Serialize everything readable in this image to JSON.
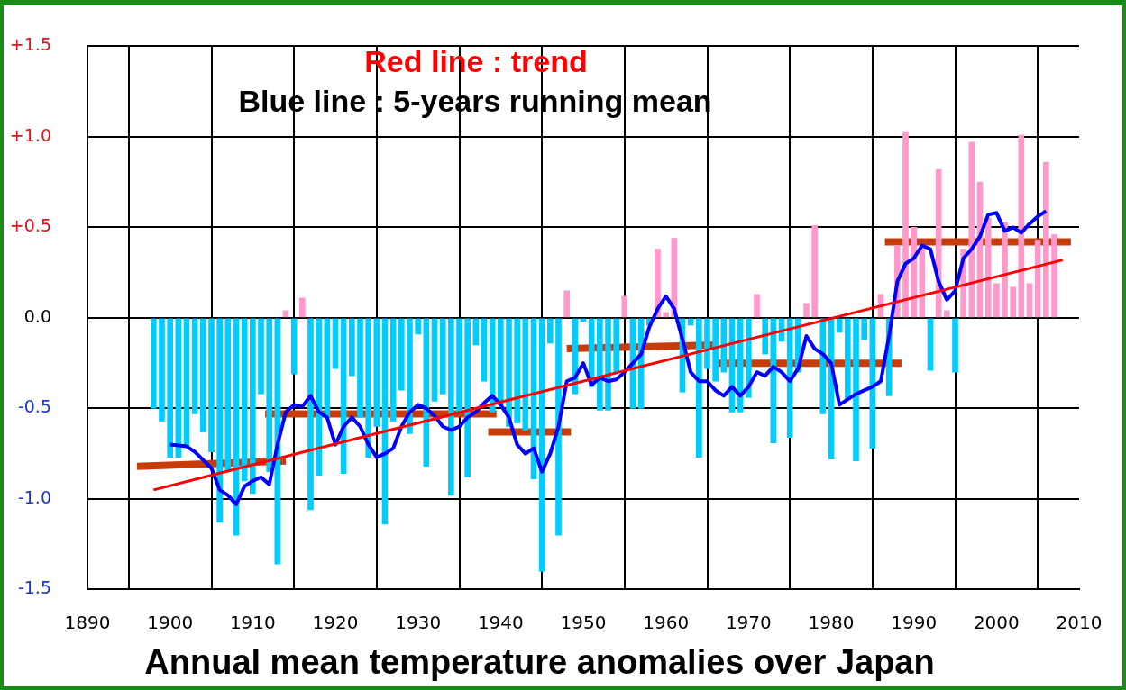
{
  "chart_data": {
    "type": "bar",
    "title": "Annual mean temperature anomalies over Japan",
    "annotations": [
      "Red line : trend",
      "Blue line : 5-years running mean"
    ],
    "xlim": [
      1890,
      2010
    ],
    "xticks": [
      1890,
      1900,
      1910,
      1920,
      1930,
      1940,
      1950,
      1960,
      1970,
      1980,
      1990,
      2000,
      2010
    ],
    "ylim": [
      -1.5,
      1.5
    ],
    "yticks": [
      {
        "value": 1.5,
        "label": "+1.5"
      },
      {
        "value": 1,
        "label": "+1.0"
      },
      {
        "value": 0.5,
        "label": "+0.5"
      },
      {
        "value": 0,
        "label": "0.0"
      },
      {
        "value": -0.5,
        "label": "-0.5"
      },
      {
        "value": -1,
        "label": "-1.0"
      },
      {
        "value": -1.5,
        "label": "-1.5"
      }
    ],
    "grid": true,
    "legend": false,
    "marker": "none",
    "series": [
      {
        "x": [
          1898,
          1899,
          1900,
          1901,
          1902,
          1903,
          1904,
          1905,
          1906,
          1907,
          1908,
          1909,
          1910,
          1911,
          1912,
          1913,
          1914,
          1915,
          1916,
          1917,
          1918,
          1919,
          1920,
          1921,
          1922,
          1923,
          1924,
          1925,
          1926,
          1927,
          1928,
          1929,
          1930,
          1931,
          1932,
          1933,
          1934,
          1935,
          1936,
          1937,
          1938,
          1939,
          1940,
          1941,
          1942,
          1943,
          1944,
          1945,
          1946,
          1947,
          1948,
          1949,
          1950,
          1951,
          1952,
          1953,
          1954,
          1955,
          1956,
          1957,
          1958,
          1959,
          1960,
          1961,
          1962,
          1963,
          1964,
          1965,
          1966,
          1967,
          1968,
          1969,
          1970,
          1971,
          1972,
          1973,
          1974,
          1975,
          1976,
          1977,
          1978,
          1979,
          1980,
          1981,
          1982,
          1983,
          1984,
          1985,
          1986,
          1987,
          1988,
          1989,
          1990,
          1991,
          1992,
          1993,
          1994,
          1995,
          1996,
          1997,
          1998,
          1999,
          2000,
          2001,
          2002,
          2003,
          2004,
          2005,
          2006,
          2007
        ],
        "values": [
          -0.5,
          -0.57,
          -0.77,
          -0.77,
          -0.71,
          -0.53,
          -0.63,
          -0.74,
          -1.13,
          -0.85,
          -1.2,
          -0.9,
          -0.97,
          -0.42,
          -0.85,
          -1.36,
          0.04,
          -0.31,
          0.11,
          -1.06,
          -0.87,
          -0.55,
          -0.28,
          -0.86,
          -0.32,
          -0.55,
          -0.77,
          -0.6,
          -1.14,
          -0.57,
          -0.4,
          -0.64,
          -0.09,
          -0.82,
          -0.46,
          -0.42,
          -0.98,
          -0.53,
          -0.88,
          -0.15,
          -0.35,
          -0.52,
          -0.48,
          -0.6,
          -0.58,
          -0.62,
          -0.89,
          -1.4,
          -0.14,
          -1.2,
          0.15,
          -0.42,
          -0.02,
          -0.38,
          -0.51,
          -0.51,
          -0.3,
          0.12,
          -0.5,
          -0.5,
          -0.04,
          0.38,
          0.03,
          0.44,
          -0.41,
          -0.04,
          -0.77,
          -0.28,
          -0.35,
          -0.3,
          -0.52,
          -0.52,
          -0.44,
          0.13,
          -0.2,
          -0.69,
          -0.13,
          -0.66,
          -0.3,
          0.08,
          0.51,
          -0.53,
          -0.78,
          -0.08,
          -0.45,
          -0.79,
          -0.12,
          -0.72,
          0.13,
          -0.43,
          0.4,
          1.03,
          0.5,
          0.4,
          -0.29,
          0.82,
          0.04,
          -0.3,
          0.38,
          0.97,
          0.75,
          0.55,
          0.19,
          0.53,
          0.17,
          1.01,
          0.19,
          0.43,
          0.86,
          0.46
        ],
        "colors": [
          "#00ccff",
          "#00ccff",
          "#00ccff",
          "#00ccff",
          "#00ccff",
          "#00ccff",
          "#00ccff",
          "#00ccff",
          "#00ccff",
          "#00ccff",
          "#00ccff",
          "#00ccff",
          "#00ccff",
          "#00ccff",
          "#00ccff",
          "#00ccff",
          "#ff99cc",
          "#00ccff",
          "#ff99cc",
          "#00ccff",
          "#00ccff",
          "#00ccff",
          "#00ccff",
          "#00ccff",
          "#00ccff",
          "#00ccff",
          "#00ccff",
          "#00ccff",
          "#00ccff",
          "#00ccff",
          "#00ccff",
          "#00ccff",
          "#00ccff",
          "#00ccff",
          "#00ccff",
          "#00ccff",
          "#00ccff",
          "#00ccff",
          "#00ccff",
          "#00ccff",
          "#00ccff",
          "#00ccff",
          "#00ccff",
          "#00ccff",
          "#00ccff",
          "#00ccff",
          "#00ccff",
          "#00ccff",
          "#00ccff",
          "#00ccff",
          "#ff99cc",
          "#00ccff",
          "#00ccff",
          "#00ccff",
          "#00ccff",
          "#00ccff",
          "#00ccff",
          "#ff99cc",
          "#00ccff",
          "#00ccff",
          "#00ccff",
          "#ff99cc",
          "#ff99cc",
          "#ff99cc",
          "#00ccff",
          "#00ccff",
          "#00ccff",
          "#00ccff",
          "#00ccff",
          "#00ccff",
          "#00ccff",
          "#00ccff",
          "#00ccff",
          "#ff99cc",
          "#00ccff",
          "#00ccff",
          "#00ccff",
          "#00ccff",
          "#00ccff",
          "#ff99cc",
          "#ff99cc",
          "#00ccff",
          "#00ccff",
          "#00ccff",
          "#00ccff",
          "#00ccff",
          "#00ccff",
          "#00ccff",
          "#ff99cc",
          "#00ccff",
          "#ff99cc",
          "#ff99cc",
          "#ff99cc",
          "#ff99cc",
          "#00ccff",
          "#ff99cc",
          "#ff99cc",
          "#00ccff",
          "#ff99cc",
          "#ff99cc",
          "#ff99cc",
          "#ff99cc",
          "#ff99cc",
          "#ff99cc",
          "#ff99cc",
          "#ff99cc",
          "#ff99cc",
          "#ff99cc",
          "#ff99cc",
          "#ff99cc"
        ]
      },
      {
        "type": "line",
        "color": "#0000ff",
        "x": [
          1900,
          1902,
          1903,
          1905,
          1906,
          1907,
          1908,
          1909,
          1910,
          1911,
          1912,
          1913,
          1914,
          1915,
          1916,
          1917,
          1918,
          1919,
          1920,
          1921,
          1922,
          1923,
          1924,
          1925,
          1926,
          1927,
          1928,
          1929,
          1930,
          1931,
          1932,
          1933,
          1934,
          1935,
          1936,
          1937,
          1938,
          1939,
          1940,
          1941,
          1942,
          1943,
          1944,
          1945,
          1946,
          1947,
          1948,
          1949,
          1950,
          1951,
          1952,
          1953,
          1954,
          1955,
          1956,
          1957,
          1958,
          1959,
          1960,
          1961,
          1962,
          1963,
          1964,
          1965,
          1966,
          1967,
          1968,
          1969,
          1970,
          1971,
          1972,
          1973,
          1974,
          1975,
          1976,
          1977,
          1978,
          1979,
          1980,
          1981,
          1982,
          1983,
          1984,
          1985,
          1986,
          1987,
          1988,
          1989,
          1990,
          1991,
          1992,
          1993,
          1994,
          1995,
          1996,
          1997,
          1998,
          1999,
          2000,
          2001,
          2002,
          2003,
          2004,
          2005,
          2006
        ],
        "values": [
          -0.7,
          -0.71,
          -0.74,
          -0.83,
          -0.95,
          -0.98,
          -1.03,
          -0.93,
          -0.9,
          -0.88,
          -0.92,
          -0.7,
          -0.52,
          -0.48,
          -0.49,
          -0.43,
          -0.52,
          -0.55,
          -0.7,
          -0.6,
          -0.55,
          -0.6,
          -0.7,
          -0.77,
          -0.75,
          -0.72,
          -0.6,
          -0.52,
          -0.48,
          -0.5,
          -0.54,
          -0.6,
          -0.62,
          -0.6,
          -0.55,
          -0.52,
          -0.47,
          -0.43,
          -0.48,
          -0.55,
          -0.7,
          -0.75,
          -0.72,
          -0.85,
          -0.75,
          -0.6,
          -0.35,
          -0.33,
          -0.25,
          -0.37,
          -0.33,
          -0.35,
          -0.34,
          -0.3,
          -0.25,
          -0.2,
          -0.05,
          0.05,
          0.12,
          0.05,
          -0.12,
          -0.3,
          -0.35,
          -0.35,
          -0.4,
          -0.43,
          -0.38,
          -0.43,
          -0.38,
          -0.3,
          -0.32,
          -0.27,
          -0.3,
          -0.35,
          -0.28,
          -0.1,
          -0.17,
          -0.2,
          -0.25,
          -0.48,
          -0.45,
          -0.42,
          -0.4,
          -0.38,
          -0.35,
          -0.1,
          0.2,
          0.3,
          0.33,
          0.4,
          0.38,
          0.2,
          0.1,
          0.15,
          0.33,
          0.38,
          0.45,
          0.57,
          0.58,
          0.48,
          0.5,
          0.47,
          0.52,
          0.56,
          0.59
        ]
      },
      {
        "type": "line",
        "color": "#ff0000",
        "x": [
          1898,
          2008
        ],
        "values": [
          -0.95,
          0.32
        ]
      },
      {
        "type": "line",
        "color": "#c83c0a",
        "x": [
          1896,
          1914
        ],
        "values": [
          -0.82,
          -0.79
        ]
      },
      {
        "type": "line",
        "color": "#c83c0a",
        "x": [
          1911.5,
          1939.5
        ],
        "values": [
          -0.53,
          -0.53
        ]
      },
      {
        "type": "line",
        "color": "#c83c0a",
        "x": [
          1938.5,
          1948.5
        ],
        "values": [
          -0.63,
          -0.63
        ]
      },
      {
        "type": "line",
        "color": "#c83c0a",
        "x": [
          1948,
          1966
        ],
        "values": [
          -0.17,
          -0.15
        ]
      },
      {
        "type": "line",
        "color": "#c83c0a",
        "x": [
          1966,
          1988.5
        ],
        "values": [
          -0.25,
          -0.25
        ]
      },
      {
        "type": "line",
        "color": "#c83c0a",
        "x": [
          1986.5,
          2009
        ],
        "values": [
          0.42,
          0.42
        ]
      }
    ]
  }
}
